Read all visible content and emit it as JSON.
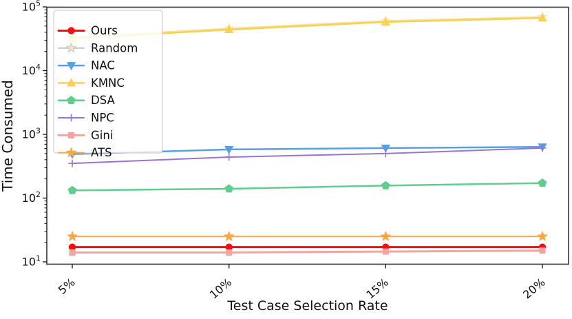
{
  "figure": {
    "background": "#ffffff",
    "spine_color": "#4a4a4a"
  },
  "chart_data": {
    "type": "line",
    "title": "",
    "xlabel": "Test Case Selection Rate",
    "ylabel": "Time Consumed",
    "x_categories": [
      "5%",
      "10%",
      "15%",
      "20%"
    ],
    "y_scale": "log",
    "ylim": [
      10,
      100000
    ],
    "y_tick_exponents": [
      1,
      2,
      3,
      4,
      5
    ],
    "y_tick_base": "10",
    "grid": false,
    "legend_position": "upper-left",
    "series": [
      {
        "name": "Ours",
        "color": "#fb0d0d",
        "marker": "circle",
        "line_width": 3,
        "values": [
          17,
          17,
          17,
          17
        ]
      },
      {
        "name": "Random",
        "color": "#c6c6c6",
        "line_color": "#f5e2a2",
        "marker_color": "#f3e8c0",
        "marker": "star",
        "line_width": 2,
        "values": [
          33500,
          46000,
          60500,
          70000
        ]
      },
      {
        "name": "NAC",
        "color": "#56a0e3",
        "marker": "triangle-down",
        "line_width": 2.5,
        "values": [
          490,
          580,
          610,
          635
        ]
      },
      {
        "name": "KMNC",
        "color": "#fbd14b",
        "marker": "triangle-up",
        "line_width": 2.5,
        "values": [
          32000,
          44000,
          58000,
          67000
        ]
      },
      {
        "name": "DSA",
        "color": "#5ecd8e",
        "marker": "pentagon",
        "line_width": 2.5,
        "values": [
          132,
          140,
          157,
          172
        ]
      },
      {
        "name": "NPC",
        "color": "#9a74d2",
        "marker": "plus",
        "line_width": 2,
        "values": [
          350,
          440,
          500,
          610
        ]
      },
      {
        "name": "Gini",
        "color": "#f5a39c",
        "marker": "square",
        "line_width": 3,
        "values": [
          14,
          14,
          14.5,
          15
        ]
      },
      {
        "name": "ATS",
        "color": "#ffa640",
        "marker": "star",
        "line_width": 2,
        "values": [
          25,
          25,
          25,
          25
        ]
      }
    ]
  }
}
